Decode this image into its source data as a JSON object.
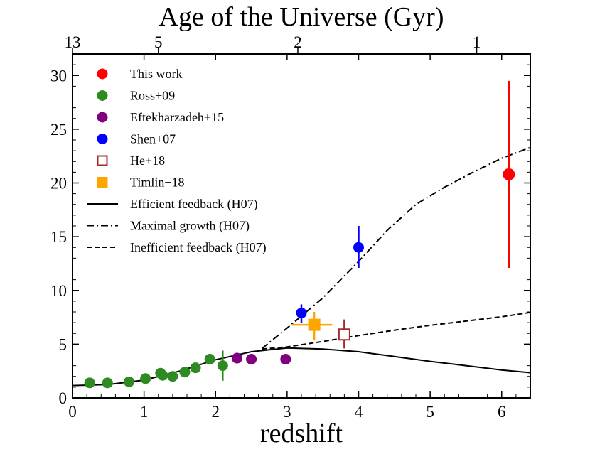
{
  "chart_data": {
    "type": "scatter",
    "title": "",
    "xlabel": "redshift",
    "ylabel": "",
    "top_axis_label": "Age of the Universe (Gyr)",
    "xlim": [
      0,
      6.4
    ],
    "ylim": [
      0,
      32
    ],
    "x_ticks": [
      0,
      1,
      2,
      3,
      4,
      5,
      6
    ],
    "y_ticks": [
      0,
      5,
      10,
      15,
      20,
      25,
      30
    ],
    "top_ticks": [
      {
        "label": "13",
        "z": 0.0
      },
      {
        "label": "5",
        "z": 1.2
      },
      {
        "label": "2",
        "z": 3.15
      },
      {
        "label": "1",
        "z": 5.65
      }
    ],
    "legend_position": "top-left",
    "grid": false,
    "series": [
      {
        "name": "This work",
        "kind": "marker",
        "marker": "circle",
        "color": "#ff0000",
        "points": [
          {
            "x": 6.1,
            "y": 20.8,
            "ylo": 12.1,
            "yhi": 29.5
          }
        ]
      },
      {
        "name": "Ross+09",
        "kind": "marker",
        "marker": "circle",
        "color": "#2e8b22",
        "points": [
          {
            "x": 0.24,
            "y": 1.4
          },
          {
            "x": 0.49,
            "y": 1.4
          },
          {
            "x": 0.79,
            "y": 1.5
          },
          {
            "x": 1.02,
            "y": 1.8
          },
          {
            "x": 1.23,
            "y": 2.3
          },
          {
            "x": 1.26,
            "y": 2.1
          },
          {
            "x": 1.4,
            "y": 2.0
          },
          {
            "x": 1.57,
            "y": 2.4
          },
          {
            "x": 1.72,
            "y": 2.8
          },
          {
            "x": 1.92,
            "y": 3.6
          },
          {
            "x": 2.1,
            "y": 3.0,
            "ylo": 1.6,
            "yhi": 4.4
          }
        ]
      },
      {
        "name": "Eftekharzadeh+15",
        "kind": "marker",
        "marker": "circle",
        "color": "#800080",
        "points": [
          {
            "x": 2.3,
            "y": 3.7
          },
          {
            "x": 2.5,
            "y": 3.6
          },
          {
            "x": 2.98,
            "y": 3.6
          }
        ]
      },
      {
        "name": "Shen+07",
        "kind": "marker",
        "marker": "circle",
        "color": "#0000ff",
        "points": [
          {
            "x": 3.2,
            "y": 7.9,
            "ylo": 7.0,
            "yhi": 8.7
          },
          {
            "x": 4.0,
            "y": 14.0,
            "ylo": 12.1,
            "yhi": 16.0
          }
        ]
      },
      {
        "name": "He+18",
        "kind": "marker",
        "marker": "open-square",
        "color": "#a52a2a",
        "points": [
          {
            "x": 3.8,
            "y": 5.9,
            "ylo": 4.6,
            "yhi": 7.3
          }
        ]
      },
      {
        "name": "Timlin+18",
        "kind": "marker",
        "marker": "square",
        "color": "#ffa500",
        "points": [
          {
            "x": 3.38,
            "y": 6.8,
            "ylo": 5.4,
            "yhi": 8.0,
            "xlo": 3.07,
            "xhi": 3.63
          }
        ]
      },
      {
        "name": "Efficient feedback (H07)",
        "kind": "line",
        "dash": "solid",
        "points": [
          {
            "x": 0,
            "y": 1.15
          },
          {
            "x": 0.5,
            "y": 1.25
          },
          {
            "x": 1.0,
            "y": 1.65
          },
          {
            "x": 1.5,
            "y": 2.5
          },
          {
            "x": 2.0,
            "y": 3.55
          },
          {
            "x": 2.5,
            "y": 4.3
          },
          {
            "x": 3.0,
            "y": 4.65
          },
          {
            "x": 3.5,
            "y": 4.55
          },
          {
            "x": 4.0,
            "y": 4.3
          },
          {
            "x": 4.5,
            "y": 3.85
          },
          {
            "x": 5.0,
            "y": 3.4
          },
          {
            "x": 5.5,
            "y": 3.0
          },
          {
            "x": 6.0,
            "y": 2.6
          },
          {
            "x": 6.4,
            "y": 2.35
          }
        ]
      },
      {
        "name": "Maximal growth (H07)",
        "kind": "line",
        "dash": "dashdot",
        "points": [
          {
            "x": 2.65,
            "y": 4.6
          },
          {
            "x": 3.0,
            "y": 6.5
          },
          {
            "x": 3.5,
            "y": 9.3
          },
          {
            "x": 4.0,
            "y": 12.7
          },
          {
            "x": 4.4,
            "y": 15.6
          },
          {
            "x": 4.8,
            "y": 18.0
          },
          {
            "x": 5.2,
            "y": 19.6
          },
          {
            "x": 5.6,
            "y": 21.0
          },
          {
            "x": 6.0,
            "y": 22.3
          },
          {
            "x": 6.4,
            "y": 23.3
          }
        ]
      },
      {
        "name": "Inefficient feedback (H07)",
        "kind": "line",
        "dash": "dashed",
        "points": [
          {
            "x": 2.65,
            "y": 4.55
          },
          {
            "x": 3.0,
            "y": 4.75
          },
          {
            "x": 3.5,
            "y": 5.25
          },
          {
            "x": 4.0,
            "y": 5.8
          },
          {
            "x": 4.5,
            "y": 6.3
          },
          {
            "x": 5.0,
            "y": 6.75
          },
          {
            "x": 5.5,
            "y": 7.15
          },
          {
            "x": 6.0,
            "y": 7.55
          },
          {
            "x": 6.4,
            "y": 7.95
          }
        ]
      }
    ]
  }
}
